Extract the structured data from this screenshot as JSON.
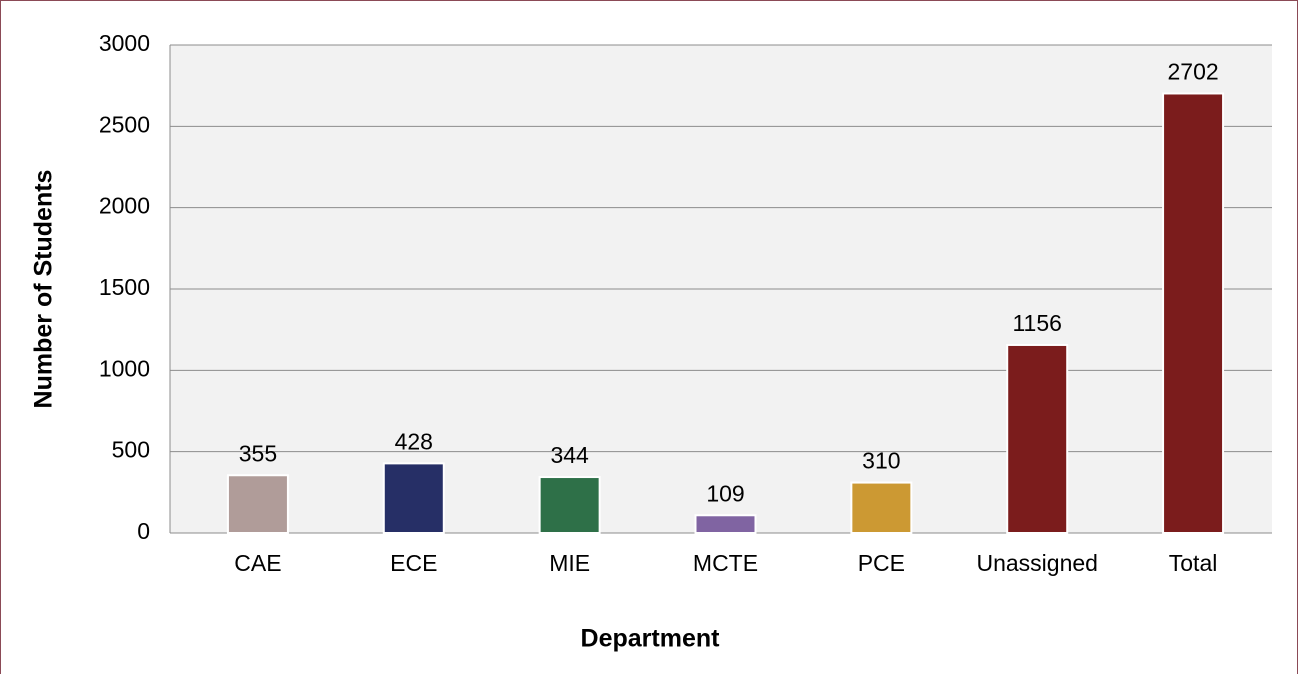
{
  "chart_data": {
    "type": "bar",
    "categories": [
      "CAE",
      "ECE",
      "MIE",
      "MCTE",
      "PCE",
      "Unassigned",
      "Total"
    ],
    "values": [
      355,
      428,
      344,
      109,
      310,
      1156,
      2702
    ],
    "colors": [
      "#b09c99",
      "#262f66",
      "#2e7048",
      "#8064a2",
      "#cc9933",
      "#7b1c1c",
      "#7b1c1c"
    ],
    "xlabel": "Department",
    "ylabel": "Number of Students",
    "ylim": [
      0,
      3000
    ],
    "yticks": [
      0,
      500,
      1000,
      1500,
      2000,
      2500,
      3000
    ],
    "grid": true
  }
}
